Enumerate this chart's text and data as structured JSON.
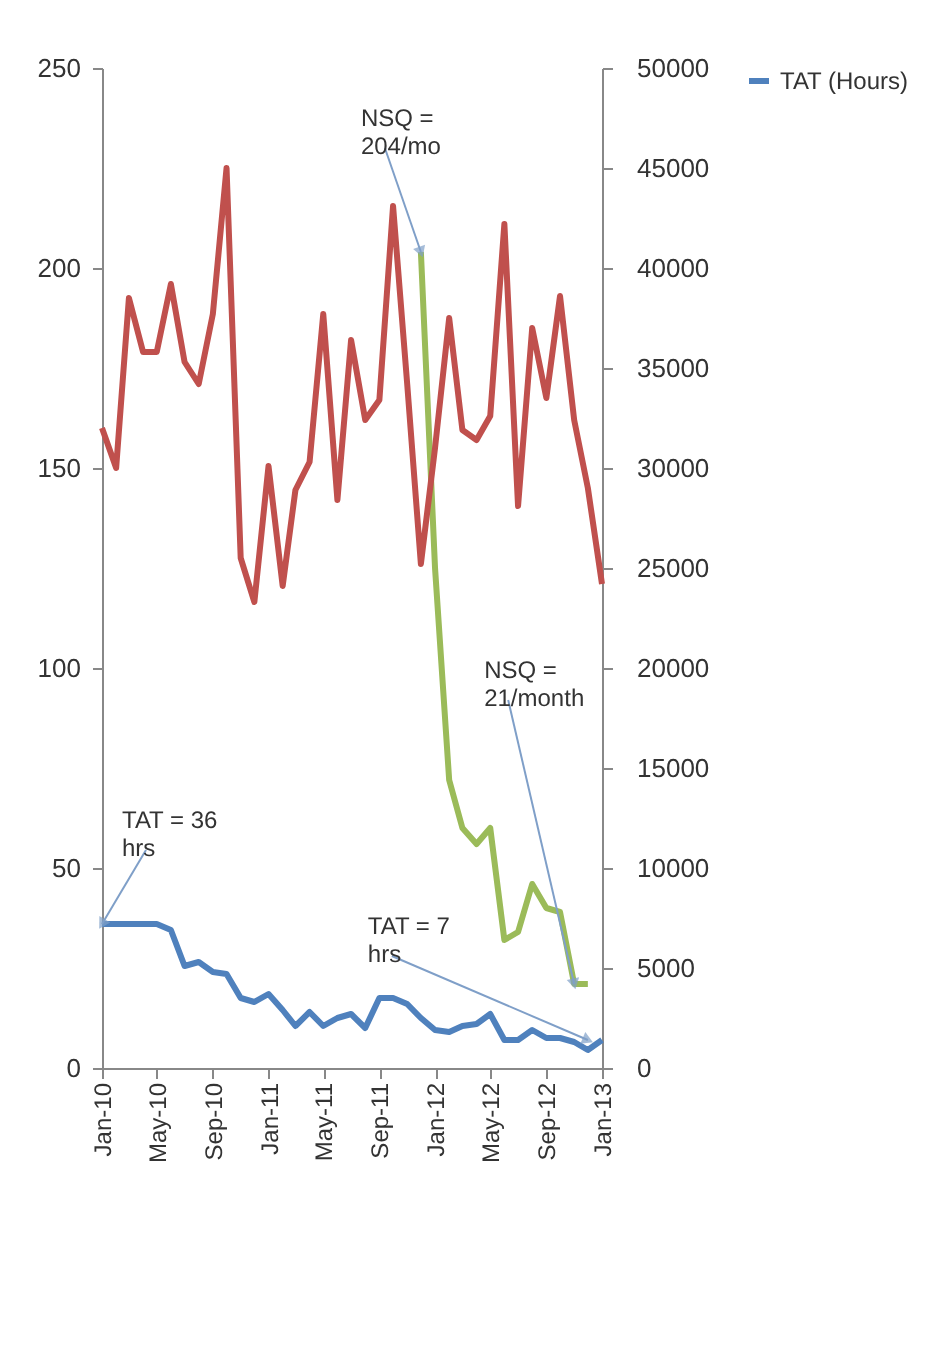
{
  "chart_data": {
    "type": "line",
    "x": [
      "2010-01",
      "2010-02",
      "2010-03",
      "2010-04",
      "2010-05",
      "2010-06",
      "2010-07",
      "2010-08",
      "2010-09",
      "2010-10",
      "2010-11",
      "2010-12",
      "2011-01",
      "2011-02",
      "2011-03",
      "2011-04",
      "2011-05",
      "2011-06",
      "2011-07",
      "2011-08",
      "2011-09",
      "2011-10",
      "2011-11",
      "2011-12",
      "2012-01",
      "2012-02",
      "2012-03",
      "2012-04",
      "2012-05",
      "2012-06",
      "2012-07",
      "2012-08",
      "2012-09",
      "2012-10",
      "2012-11",
      "2012-12",
      "2013-01"
    ],
    "series": [
      {
        "color": "#c0504d",
        "axis": "y2",
        "values": [
          32000,
          30000,
          38500,
          35800,
          35800,
          39200,
          35300,
          34200,
          37700,
          45000,
          25500,
          23300,
          30100,
          24100,
          28900,
          30300,
          37700,
          28400,
          36400,
          32400,
          33400,
          43100,
          34200,
          25200,
          31000,
          37500,
          31900,
          31400,
          32600,
          42200,
          28100,
          37000,
          33500,
          38600,
          32400,
          29000,
          24200
        ]
      },
      {
        "color": "#9bbb59",
        "values": [
          null,
          null,
          null,
          null,
          null,
          null,
          null,
          null,
          null,
          null,
          null,
          null,
          null,
          null,
          null,
          null,
          null,
          null,
          null,
          null,
          null,
          null,
          null,
          204,
          125,
          72,
          60,
          56,
          60,
          32,
          34,
          46,
          40,
          39,
          21,
          21,
          null
        ]
      },
      {
        "name": "TAT (Hours)",
        "color": "#4f81bd",
        "values": [
          36,
          36,
          36,
          36,
          36,
          34.5,
          25.5,
          26.5,
          24,
          23.5,
          17.5,
          16.5,
          18.5,
          14.5,
          10.5,
          14,
          10.5,
          12.5,
          13.5,
          10,
          17.5,
          17.5,
          16,
          12.5,
          9.5,
          9,
          10.5,
          11,
          13.5,
          7,
          7,
          9.5,
          7.5,
          7.5,
          6.5,
          4.5,
          7
        ]
      }
    ],
    "xlim": [
      "2010-01",
      "2013-01"
    ],
    "xticks": [
      {
        "value": "2010-01",
        "label": "Jan-10"
      },
      {
        "value": "2010-05",
        "label": "May-10"
      },
      {
        "value": "2010-09",
        "label": "Sep-10"
      },
      {
        "value": "2011-01",
        "label": "Jan-11"
      },
      {
        "value": "2011-05",
        "label": "May-11"
      },
      {
        "value": "2011-09",
        "label": "Sep-11"
      },
      {
        "value": "2012-01",
        "label": "Jan-12"
      },
      {
        "value": "2012-05",
        "label": "May-12"
      },
      {
        "value": "2012-09",
        "label": "Sep-12"
      },
      {
        "value": "2013-01",
        "label": "Jan-13"
      }
    ],
    "ylim": [
      0,
      250
    ],
    "yticks": [
      0,
      50,
      100,
      150,
      200,
      250
    ],
    "y2lim": [
      0,
      50000
    ],
    "y2ticks": [
      0,
      5000,
      10000,
      15000,
      20000,
      25000,
      30000,
      35000,
      40000,
      45000,
      50000
    ],
    "annotations": [
      {
        "text": "NSQ = 204/mo",
        "x": "2011-12",
        "y": 204
      },
      {
        "text": "NSQ = 21/month",
        "x": "2012-11",
        "y": 21
      },
      {
        "text": "TAT = 36 hrs",
        "x": "2010-01",
        "y": 36
      },
      {
        "text": "TAT = 7 hrs",
        "x": "2012-12",
        "y": 7
      }
    ],
    "legend": "right",
    "grid": false,
    "marker": "none",
    "line_style": "solid"
  }
}
